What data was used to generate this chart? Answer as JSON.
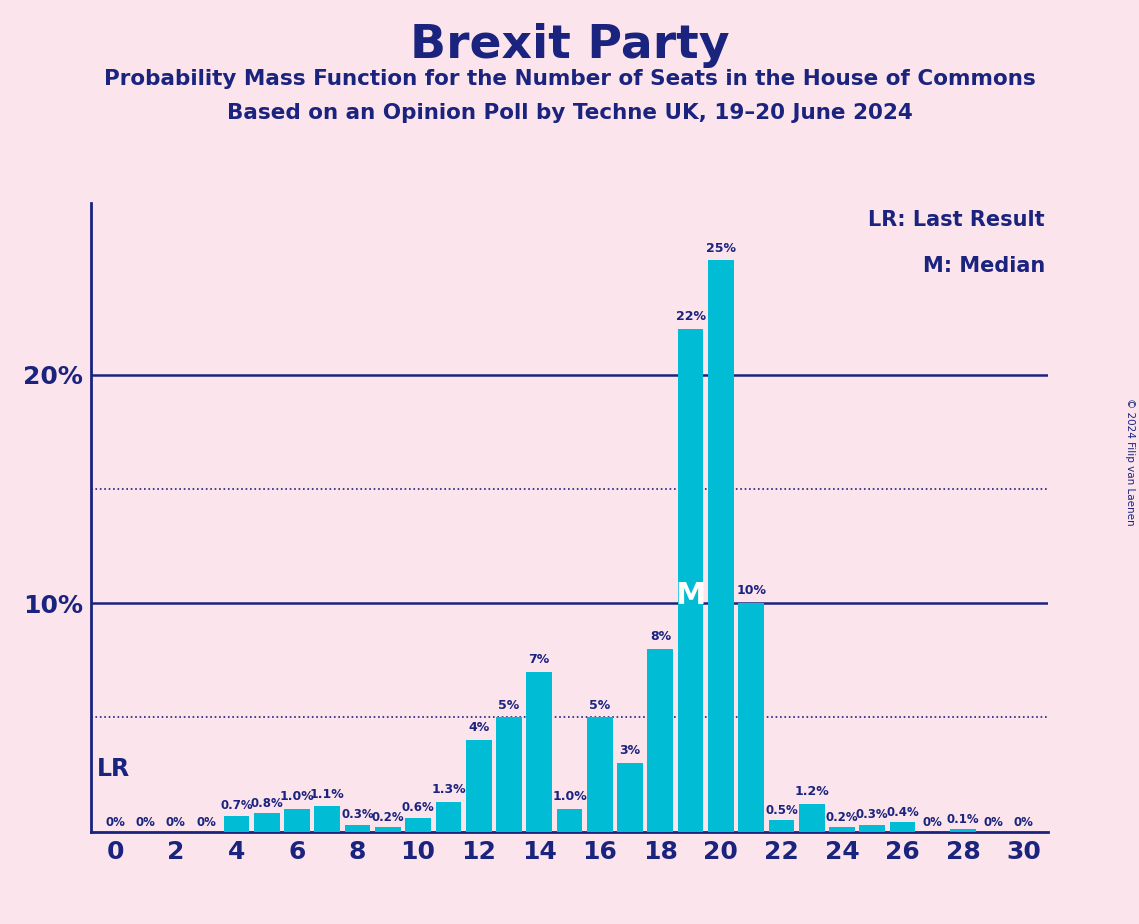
{
  "title": "Brexit Party",
  "subtitle1": "Probability Mass Function for the Number of Seats in the House of Commons",
  "subtitle2": "Based on an Opinion Poll by Techne UK, 19–20 June 2024",
  "copyright": "© 2024 Filip van Laenen",
  "background_color": "#fce4ec",
  "bar_color": "#00bcd4",
  "axis_color": "#1a237e",
  "text_color": "#1a237e",
  "seats": [
    0,
    1,
    2,
    3,
    4,
    5,
    6,
    7,
    8,
    9,
    10,
    11,
    12,
    13,
    14,
    15,
    16,
    17,
    18,
    19,
    20,
    21,
    22,
    23,
    24,
    25,
    26,
    27,
    28,
    29,
    30
  ],
  "probabilities": [
    0.0,
    0.0,
    0.0,
    0.0,
    0.7,
    0.8,
    1.0,
    1.1,
    0.3,
    0.2,
    0.6,
    1.3,
    4.0,
    5.0,
    7.0,
    1.0,
    5.0,
    3.0,
    8.0,
    22.0,
    25.0,
    10.0,
    0.5,
    1.2,
    0.2,
    0.3,
    0.4,
    0.0,
    0.1,
    0.0,
    0.0
  ],
  "labels": [
    "0%",
    "0%",
    "0%",
    "0%",
    "0.7%",
    "0.8%",
    "1.0%",
    "1.1%",
    "0.3%",
    "0.2%",
    "0.6%",
    "1.3%",
    "4%",
    "5%",
    "7%",
    "1.0%",
    "5%",
    "3%",
    "8%",
    "22%",
    "25%",
    "10%",
    "0.5%",
    "1.2%",
    "0.2%",
    "0.3%",
    "0.4%",
    "0%",
    "0.1%",
    "0%",
    "0%"
  ],
  "solid_gridlines": [
    10.0,
    20.0
  ],
  "dotted_gridlines": [
    5.0,
    15.0
  ],
  "ylim": [
    0,
    27.5
  ],
  "yticks": [
    10,
    20
  ],
  "ytick_labels": [
    "10%",
    "20%"
  ],
  "xticks": [
    0,
    2,
    4,
    6,
    8,
    10,
    12,
    14,
    16,
    18,
    20,
    22,
    24,
    26,
    28,
    30
  ],
  "median_seat": 19,
  "lr_seat": 0,
  "legend_lr": "LR: Last Result",
  "legend_m": "M: Median"
}
